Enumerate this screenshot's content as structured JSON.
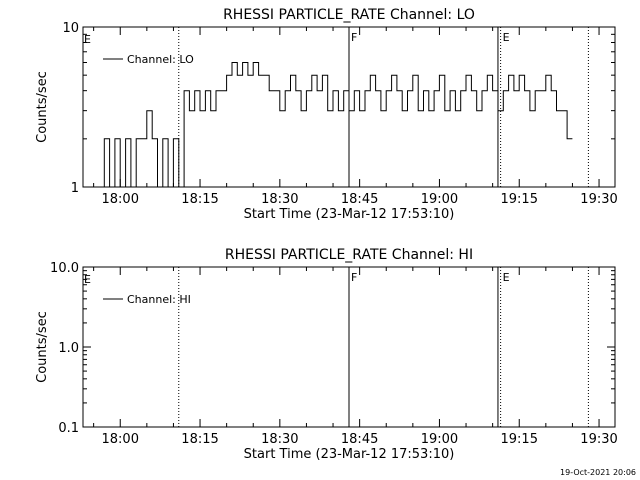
{
  "footer": {
    "timestamp": "19-Oct-2021 20:06"
  },
  "chart_data": [
    {
      "type": "line",
      "title": "RHESSI PARTICLE_RATE Channel: LO",
      "xlabel": "Start Time (23-Mar-12 17:53:10)",
      "ylabel": "Counts/sec",
      "yscale": "log",
      "xlim": [
        "17:53",
        "19:33"
      ],
      "ylim": [
        1,
        10
      ],
      "x_ticks": [
        "18:00",
        "18:15",
        "18:30",
        "18:45",
        "19:00",
        "19:15",
        "19:30"
      ],
      "y_ticks": [
        {
          "value": 1,
          "label": "1"
        },
        {
          "value": 10,
          "label": "10"
        }
      ],
      "legend": {
        "position": "top-left",
        "entries": [
          "Channel: LO"
        ]
      },
      "markers": [
        {
          "time": "18:11",
          "style": "dotted",
          "label": ""
        },
        {
          "time": "18:43",
          "style": "solid",
          "label": "F"
        },
        {
          "time": "19:11",
          "style": "solid",
          "label": ""
        },
        {
          "time": "19:11.5",
          "style": "dotted",
          "label": "E"
        },
        {
          "time": "19:28",
          "style": "dotted",
          "label": ""
        }
      ],
      "corner_label": "E",
      "series": [
        {
          "name": "Channel: LO",
          "x": [
            "17:56",
            "17:57",
            "17:58",
            "17:59",
            "18:00",
            "18:01",
            "18:02",
            "18:03",
            "18:04",
            "18:05",
            "18:06",
            "18:07",
            "18:08",
            "18:09",
            "18:10",
            "18:11",
            "18:12",
            "18:13",
            "18:14",
            "18:15",
            "18:16",
            "18:17",
            "18:18",
            "18:19",
            "18:20",
            "18:21",
            "18:22",
            "18:23",
            "18:24",
            "18:25",
            "18:26",
            "18:27",
            "18:28",
            "18:29",
            "18:30",
            "18:31",
            "18:32",
            "18:33",
            "18:34",
            "18:35",
            "18:36",
            "18:37",
            "18:38",
            "18:39",
            "18:40",
            "18:41",
            "18:42",
            "18:43",
            "18:44",
            "18:45",
            "18:46",
            "18:47",
            "18:48",
            "18:49",
            "18:50",
            "18:51",
            "18:52",
            "18:53",
            "18:54",
            "18:55",
            "18:56",
            "18:57",
            "18:58",
            "18:59",
            "19:00",
            "19:01",
            "19:02",
            "19:03",
            "19:04",
            "19:05",
            "19:06",
            "19:07",
            "19:08",
            "19:09",
            "19:10",
            "19:11",
            "19:12",
            "19:13",
            "19:14",
            "19:15",
            "19:16",
            "19:17",
            "19:18",
            "19:19",
            "19:20",
            "19:21",
            "19:22",
            "19:23",
            "19:24"
          ],
          "values": [
            1,
            2,
            1,
            2,
            1,
            2,
            1,
            2,
            2,
            3,
            2,
            1,
            2,
            1,
            2,
            1,
            4,
            3,
            4,
            3,
            4,
            3,
            4,
            4,
            5,
            6,
            5,
            6,
            5,
            6,
            5,
            5,
            4,
            4,
            3,
            4,
            5,
            4,
            3,
            4,
            5,
            4,
            5,
            3,
            4,
            3,
            4,
            3,
            4,
            3,
            4,
            5,
            4,
            3,
            4,
            5,
            4,
            3,
            4,
            5,
            3,
            4,
            3,
            4,
            5,
            3,
            4,
            3,
            4,
            5,
            4,
            3,
            4,
            5,
            4,
            3,
            4,
            5,
            4,
            5,
            4,
            3,
            4,
            4,
            5,
            4,
            3,
            3,
            2
          ]
        }
      ]
    },
    {
      "type": "line",
      "title": "RHESSI PARTICLE_RATE Channel: HI",
      "xlabel": "Start Time (23-Mar-12 17:53:10)",
      "ylabel": "Counts/sec",
      "yscale": "log",
      "xlim": [
        "17:53",
        "19:33"
      ],
      "ylim": [
        0.1,
        10
      ],
      "x_ticks": [
        "18:00",
        "18:15",
        "18:30",
        "18:45",
        "19:00",
        "19:15",
        "19:30"
      ],
      "y_ticks": [
        {
          "value": 0.1,
          "label": "0.1"
        },
        {
          "value": 1,
          "label": "1.0"
        },
        {
          "value": 10,
          "label": "10.0"
        }
      ],
      "legend": {
        "position": "top-left",
        "entries": [
          "Channel: HI"
        ]
      },
      "markers": [
        {
          "time": "18:11",
          "style": "dotted",
          "label": ""
        },
        {
          "time": "18:43",
          "style": "solid",
          "label": "F"
        },
        {
          "time": "19:11",
          "style": "solid",
          "label": ""
        },
        {
          "time": "19:11.5",
          "style": "dotted",
          "label": "E"
        },
        {
          "time": "19:28",
          "style": "dotted",
          "label": ""
        }
      ],
      "corner_label": "E",
      "series": [
        {
          "name": "Channel: HI",
          "x": [],
          "values": []
        }
      ]
    }
  ]
}
